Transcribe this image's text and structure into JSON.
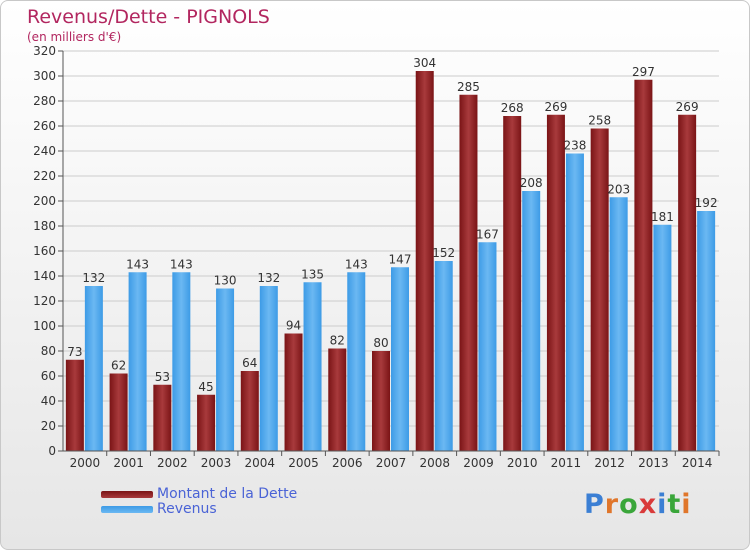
{
  "header": {
    "title": "Revenus/Dette - PIGNOLS",
    "subtitle": "(en milliers d'€)"
  },
  "legend": {
    "debt_label": "Montant de la Dette",
    "revenue_label": "Revenus"
  },
  "logo": {
    "text": "Proxiti",
    "letter_colors": [
      "#3b7fd4",
      "#e0762b",
      "#3aa63a",
      "#d93a3a",
      "#3b7fd4",
      "#3aa63a",
      "#e0762b"
    ]
  },
  "colors": {
    "debt": "#7a1416",
    "debt_light": "#a83a3c",
    "revenue": "#3d9be6",
    "revenue_light": "#6bb8f2",
    "grid": "#cccccc",
    "axis_text": "#333333"
  },
  "chart_data": {
    "type": "bar",
    "title": "Revenus/Dette - PIGNOLS",
    "subtitle": "(en milliers d'€)",
    "categories": [
      "2000",
      "2001",
      "2002",
      "2003",
      "2004",
      "2005",
      "2006",
      "2007",
      "2008",
      "2009",
      "2010",
      "2011",
      "2012",
      "2013",
      "2014"
    ],
    "series": [
      {
        "name": "Montant de la Dette",
        "values": [
          73,
          62,
          53,
          45,
          64,
          94,
          82,
          80,
          304,
          285,
          268,
          269,
          258,
          297,
          269
        ]
      },
      {
        "name": "Revenus",
        "values": [
          132,
          143,
          143,
          130,
          132,
          135,
          143,
          147,
          152,
          167,
          208,
          238,
          203,
          181,
          192
        ]
      }
    ],
    "ylim": [
      0,
      320
    ],
    "yticks": [
      0,
      20,
      40,
      60,
      80,
      100,
      120,
      140,
      160,
      180,
      200,
      220,
      240,
      260,
      280,
      300,
      320
    ],
    "grid": true,
    "legend_position": "bottom-left",
    "data_labels": true
  }
}
